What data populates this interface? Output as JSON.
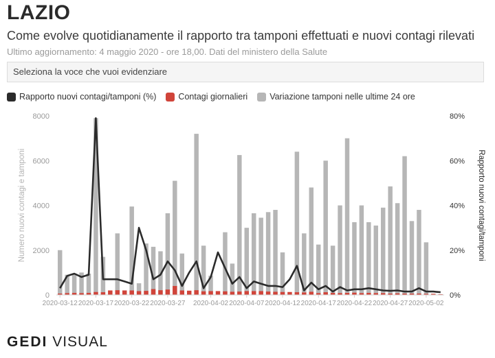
{
  "header": {
    "title": "LAZIO",
    "subtitle": "Come evolve quotidianamente il rapporto tra tamponi effettuati e nuovi contagi rilevati",
    "update": "Ultimo aggiornamento: 4 maggio 2020 - ore 18,00. Dati del ministero della Salute"
  },
  "select": {
    "label": "Seleziona la voce che vuoi evidenziare"
  },
  "colors": {
    "line": "#2b2b2b",
    "contagi": "#d0443a",
    "tamponi": "#b6b6b6",
    "axis": "#9a9a9a"
  },
  "brand": {
    "part1": "GEDI",
    "part2": "VISUAL"
  },
  "chart_data": {
    "type": "bar",
    "legend_position": "top-left",
    "grid": false,
    "x": [
      "2020-03-12",
      "2020-03-13",
      "2020-03-14",
      "2020-03-15",
      "2020-03-16",
      "2020-03-17",
      "2020-03-18",
      "2020-03-19",
      "2020-03-20",
      "2020-03-21",
      "2020-03-22",
      "2020-03-23",
      "2020-03-24",
      "2020-03-25",
      "2020-03-26",
      "2020-03-27",
      "2020-03-28",
      "2020-03-29",
      "2020-03-30",
      "2020-03-31",
      "2020-04-01",
      "2020-04-02",
      "2020-04-03",
      "2020-04-04",
      "2020-04-05",
      "2020-04-06",
      "2020-04-07",
      "2020-04-08",
      "2020-04-09",
      "2020-04-10",
      "2020-04-11",
      "2020-04-12",
      "2020-04-13",
      "2020-04-14",
      "2020-04-15",
      "2020-04-16",
      "2020-04-17",
      "2020-04-18",
      "2020-04-19",
      "2020-04-20",
      "2020-04-21",
      "2020-04-22",
      "2020-04-23",
      "2020-04-24",
      "2020-04-25",
      "2020-04-26",
      "2020-04-27",
      "2020-04-28",
      "2020-04-29",
      "2020-04-30",
      "2020-05-01",
      "2020-05-02",
      "2020-05-03",
      "2020-05-04"
    ],
    "x_ticks": [
      "2020-03-12",
      "2020-03-17",
      "2020-03-22",
      "2020-03-27",
      "2020-04-02",
      "2020-04-07",
      "2020-04-12",
      "2020-04-17",
      "2020-04-22",
      "2020-04-27",
      "2020-05-02"
    ],
    "series": [
      {
        "name": "Rapporto nuovi contagi/tamponi (%)",
        "kind": "line",
        "axis": "right",
        "values": [
          3,
          8.5,
          9.5,
          8,
          9,
          79,
          7,
          7,
          7,
          6,
          5,
          30,
          20,
          7,
          9,
          15,
          11,
          4,
          10,
          15,
          3,
          8,
          19,
          12,
          5,
          8,
          3,
          6,
          5,
          4,
          4,
          3.5,
          7,
          13,
          2,
          5.5,
          2.5,
          4,
          1.5,
          3.5,
          2,
          2.5,
          2.5,
          3,
          2.5,
          2,
          1.8,
          2,
          1.5,
          1.5,
          3,
          1.5,
          1.5,
          1.2
        ]
      },
      {
        "name": "Contagi giornalieri",
        "kind": "bar",
        "axis": "left",
        "values": [
          60,
          80,
          90,
          80,
          90,
          130,
          120,
          200,
          210,
          200,
          200,
          170,
          180,
          260,
          210,
          240,
          400,
          200,
          190,
          210,
          160,
          170,
          170,
          160,
          140,
          150,
          170,
          170,
          170,
          150,
          140,
          130,
          130,
          120,
          110,
          140,
          80,
          120,
          90,
          80,
          90,
          100,
          80,
          90,
          80,
          80,
          60,
          70,
          60,
          60,
          60,
          50,
          50,
          30
        ]
      },
      {
        "name": "Variazione tamponi nelle ultime 24 ore",
        "kind": "bar",
        "axis": "left",
        "values": [
          2000,
          900,
          950,
          1000,
          950,
          7900,
          1700,
          0,
          2750,
          0,
          3950,
          520,
          2300,
          2150,
          1950,
          3650,
          5100,
          1850,
          0,
          7200,
          2200,
          860,
          0,
          2800,
          1400,
          6250,
          3000,
          3650,
          3450,
          3700,
          3800,
          1900,
          0,
          6400,
          2750,
          4800,
          2250,
          6000,
          2200,
          4000,
          7000,
          3250,
          4000,
          3250,
          3100,
          3900,
          4850,
          4100,
          6200,
          3300,
          3800,
          2350,
          0,
          0
        ]
      }
    ],
    "y_left": {
      "label": "Numero nuovi contagi e tamponi",
      "ylim": [
        0,
        8000
      ],
      "ticks": [
        "0",
        "2000",
        "4000",
        "6000",
        "8000"
      ]
    },
    "y_right": {
      "label": "Rapporto nuovi contagi/tamponi",
      "ylim": [
        0,
        80
      ],
      "ticks": [
        "0%",
        "20%",
        "40%",
        "60%",
        "80%"
      ]
    }
  }
}
